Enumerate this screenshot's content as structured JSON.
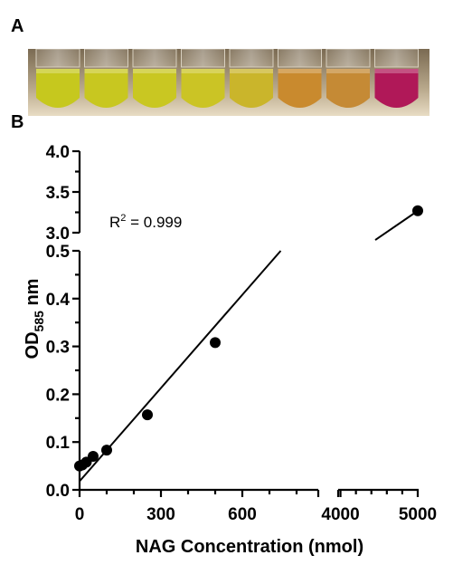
{
  "panel_a_label": "A",
  "panel_b_label": "B",
  "photo": {
    "tubes": [
      "#c6c81e",
      "#c8c720",
      "#c9c722",
      "#cbc425",
      "#cab52b",
      "#c98a2e",
      "#c58a35",
      "#b01858"
    ]
  },
  "chart_data": {
    "type": "scatter",
    "title": "",
    "xlabel": "NAG Concentration (nmol)",
    "ylabel_main": "OD",
    "ylabel_sub": "585",
    "ylabel_suffix": " nm",
    "annotation_base": "R",
    "annotation_sup": "2",
    "annotation_rest": " = 0.999",
    "x_axis": {
      "segments": [
        {
          "range": [
            0,
            880
          ],
          "ticks": [
            0,
            300,
            600
          ],
          "tick_labels": [
            "0",
            "300",
            "600"
          ],
          "minor_step": 100
        },
        {
          "range": [
            3970,
            5000
          ],
          "ticks": [
            4000,
            5000
          ],
          "tick_labels": [
            "4000",
            "5000"
          ],
          "minor_step": 200
        }
      ]
    },
    "y_axis": {
      "segments": [
        {
          "range": [
            0,
            0.5
          ],
          "ticks": [
            0.0,
            0.1,
            0.2,
            0.3,
            0.4,
            0.5
          ],
          "tick_labels": [
            "0.0",
            "0.1",
            "0.2",
            "0.3",
            "0.4",
            "0.5"
          ]
        },
        {
          "range": [
            3.0,
            4.0
          ],
          "ticks": [
            3.0,
            3.5,
            4.0
          ],
          "tick_labels": [
            "3.0",
            "3.5",
            "4.0"
          ]
        }
      ]
    },
    "points": [
      {
        "x": 0,
        "y": 0.05
      },
      {
        "x": 10,
        "y": 0.052
      },
      {
        "x": 25,
        "y": 0.058
      },
      {
        "x": 50,
        "y": 0.07
      },
      {
        "x": 100,
        "y": 0.083
      },
      {
        "x": 250,
        "y": 0.157
      },
      {
        "x": 500,
        "y": 0.308
      },
      {
        "x": 5000,
        "y": 3.27
      }
    ],
    "fit_line": {
      "slope": 0.00065,
      "intercept": 0.018
    },
    "grid": false
  }
}
